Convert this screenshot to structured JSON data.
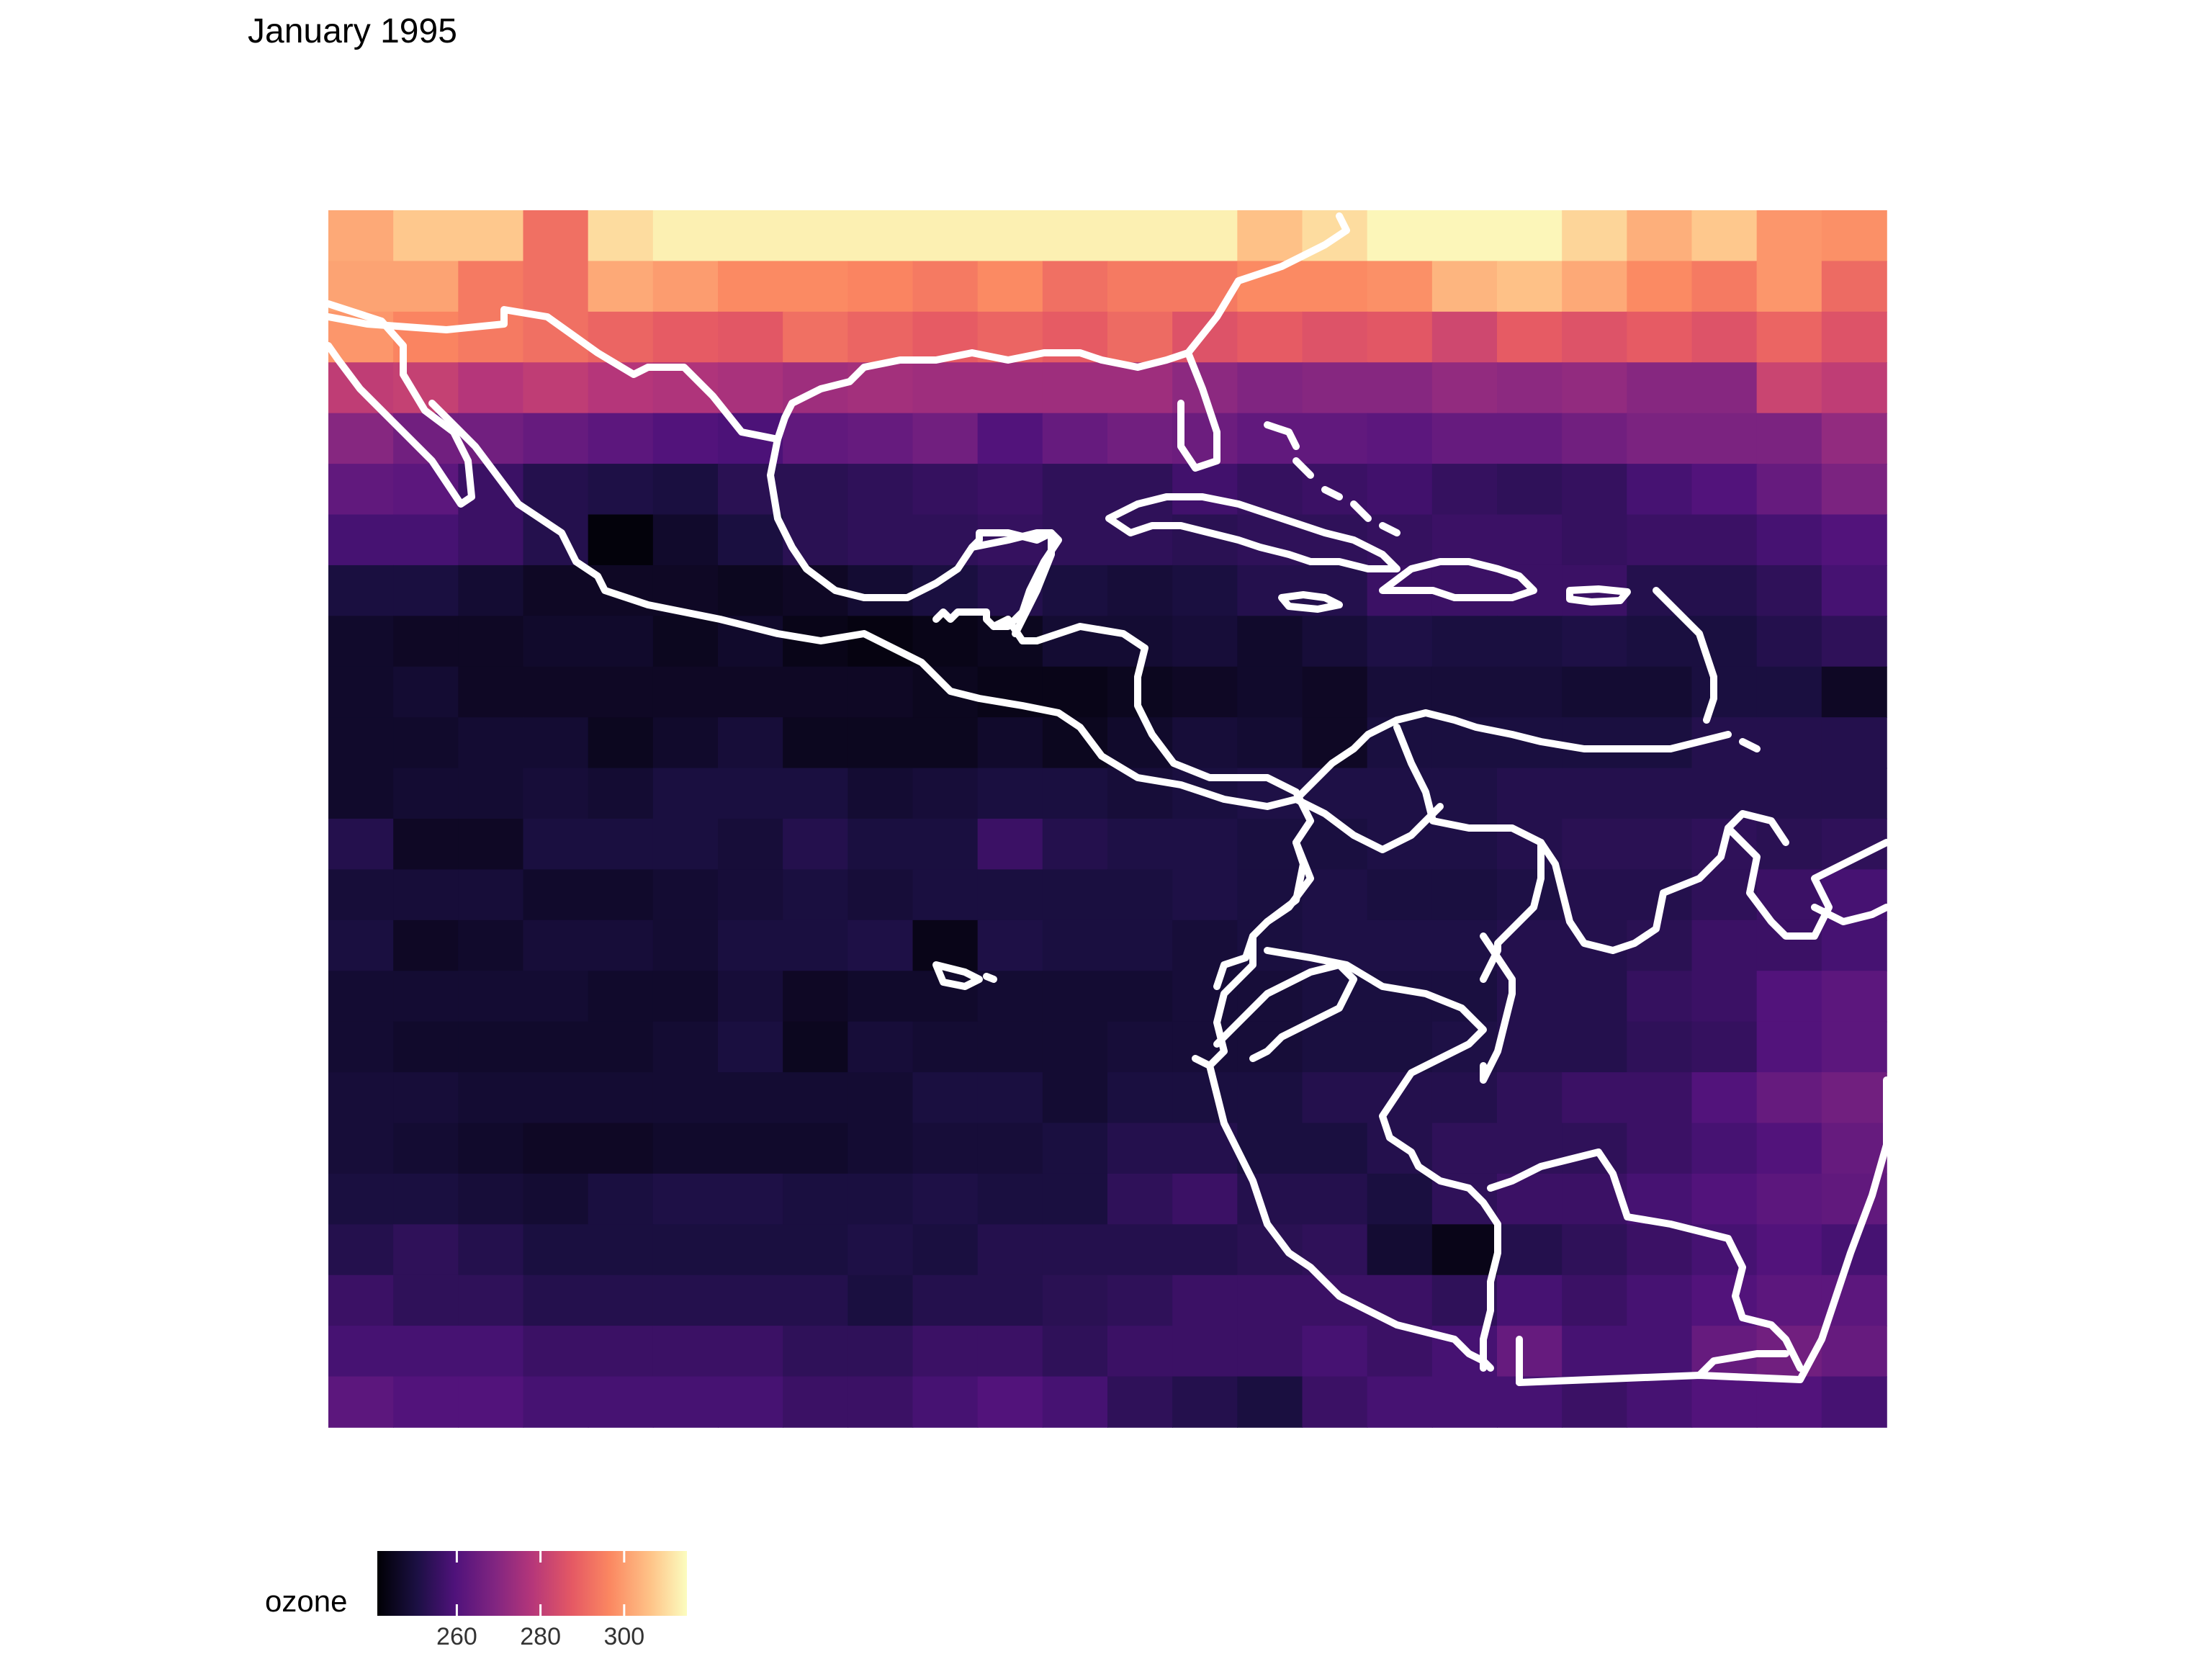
{
  "title": "January 1995",
  "chart_data": {
    "type": "heatmap",
    "title": "January 1995",
    "value_name": "ozone",
    "colorscale": "magma",
    "color_range": [
      241,
      315
    ],
    "n_cols": 24,
    "n_rows": 24,
    "values": [
      [
        302,
        307,
        307,
        292,
        310,
        313,
        313,
        313,
        313,
        313,
        313,
        313,
        313,
        313,
        306,
        310,
        314,
        314,
        314,
        309,
        303,
        307,
        299,
        298
      ],
      [
        301,
        301,
        294,
        292,
        302,
        300,
        297,
        297,
        296,
        294,
        297,
        292,
        294,
        294,
        297,
        297,
        298,
        304,
        306,
        302,
        297,
        294,
        299,
        291
      ],
      [
        299,
        296,
        294,
        292,
        290,
        288,
        287,
        292,
        290,
        288,
        290,
        288,
        291,
        286,
        288,
        286,
        287,
        283,
        288,
        286,
        288,
        286,
        290,
        286
      ],
      [
        280,
        281,
        278,
        280,
        278,
        277,
        276,
        274,
        275,
        274,
        274,
        274,
        274,
        271,
        269,
        270,
        270,
        272,
        271,
        272,
        270,
        270,
        282,
        280
      ],
      [
        270,
        266,
        266,
        264,
        262,
        260,
        259,
        263,
        264,
        266,
        260,
        264,
        266,
        265,
        263,
        263,
        262,
        264,
        264,
        266,
        268,
        268,
        268,
        272
      ],
      [
        263,
        262,
        256,
        252,
        251,
        250,
        253,
        253,
        254,
        255,
        256,
        254,
        254,
        257,
        255,
        256,
        257,
        255,
        254,
        255,
        258,
        260,
        264,
        268
      ],
      [
        258,
        258,
        256,
        252,
        242,
        247,
        250,
        253,
        254,
        254,
        255,
        254,
        254,
        253,
        254,
        254,
        255,
        256,
        256,
        255,
        256,
        256,
        258,
        260
      ],
      [
        250,
        250,
        248,
        246,
        246,
        246,
        245,
        246,
        248,
        250,
        252,
        250,
        249,
        250,
        252,
        252,
        256,
        256,
        256,
        256,
        252,
        252,
        254,
        258
      ],
      [
        247,
        246,
        246,
        247,
        247,
        245,
        247,
        244,
        243,
        244,
        245,
        248,
        248,
        249,
        247,
        249,
        251,
        250,
        250,
        251,
        250,
        250,
        252,
        254
      ],
      [
        247,
        248,
        246,
        246,
        246,
        246,
        246,
        246,
        246,
        245,
        244,
        244,
        245,
        246,
        247,
        246,
        249,
        249,
        249,
        248,
        248,
        250,
        250,
        246
      ],
      [
        247,
        247,
        248,
        248,
        245,
        247,
        249,
        245,
        245,
        245,
        247,
        245,
        247,
        249,
        248,
        246,
        250,
        250,
        250,
        250,
        250,
        252,
        252,
        252
      ],
      [
        247,
        248,
        248,
        249,
        248,
        250,
        250,
        250,
        248,
        249,
        250,
        250,
        249,
        250,
        251,
        251,
        251,
        251,
        252,
        252,
        252,
        252,
        252,
        252
      ],
      [
        252,
        246,
        246,
        250,
        250,
        250,
        249,
        252,
        250,
        250,
        256,
        252,
        251,
        251,
        250,
        250,
        251,
        251,
        252,
        253,
        253,
        254,
        253,
        254
      ],
      [
        249,
        249,
        249,
        247,
        247,
        248,
        249,
        250,
        249,
        250,
        250,
        250,
        250,
        251,
        250,
        251,
        250,
        250,
        251,
        252,
        252,
        254,
        256,
        258
      ],
      [
        250,
        246,
        247,
        249,
        249,
        248,
        250,
        250,
        251,
        244,
        251,
        250,
        250,
        249,
        250,
        251,
        251,
        251,
        252,
        252,
        253,
        256,
        256,
        258
      ],
      [
        248,
        248,
        248,
        248,
        247,
        247,
        249,
        246,
        247,
        247,
        248,
        248,
        248,
        249,
        249,
        250,
        250,
        250,
        252,
        252,
        255,
        256,
        260,
        262
      ],
      [
        248,
        247,
        247,
        247,
        247,
        248,
        250,
        245,
        249,
        248,
        248,
        248,
        249,
        249,
        249,
        250,
        250,
        251,
        252,
        252,
        254,
        255,
        260,
        262
      ],
      [
        249,
        249,
        248,
        248,
        248,
        248,
        248,
        248,
        248,
        250,
        250,
        248,
        250,
        250,
        250,
        252,
        252,
        252,
        254,
        256,
        256,
        260,
        264,
        266
      ],
      [
        249,
        248,
        247,
        246,
        246,
        247,
        247,
        247,
        248,
        249,
        249,
        250,
        252,
        252,
        250,
        250,
        252,
        254,
        254,
        254,
        256,
        258,
        260,
        264
      ],
      [
        250,
        250,
        249,
        248,
        250,
        251,
        251,
        250,
        250,
        251,
        250,
        250,
        254,
        256,
        252,
        252,
        250,
        254,
        256,
        256,
        258,
        260,
        262,
        263
      ],
      [
        252,
        254,
        252,
        250,
        250,
        250,
        250,
        250,
        251,
        250,
        252,
        252,
        252,
        252,
        253,
        254,
        248,
        244,
        252,
        254,
        256,
        258,
        260,
        258
      ],
      [
        256,
        254,
        254,
        252,
        252,
        252,
        252,
        252,
        250,
        252,
        252,
        253,
        254,
        256,
        256,
        256,
        256,
        254,
        258,
        256,
        258,
        260,
        262,
        262
      ],
      [
        258,
        258,
        258,
        256,
        256,
        256,
        256,
        254,
        254,
        256,
        256,
        254,
        256,
        256,
        256,
        258,
        256,
        258,
        264,
        258,
        258,
        264,
        266,
        264
      ],
      [
        262,
        260,
        260,
        258,
        258,
        258,
        258,
        256,
        256,
        258,
        260,
        258,
        254,
        252,
        250,
        256,
        258,
        258,
        258,
        256,
        258,
        260,
        260,
        258
      ]
    ],
    "legend": {
      "title": "ozone",
      "ticks": [
        260,
        280,
        300
      ]
    },
    "colors": {
      "outline": "#ffffff",
      "background": "#ffffff"
    }
  }
}
